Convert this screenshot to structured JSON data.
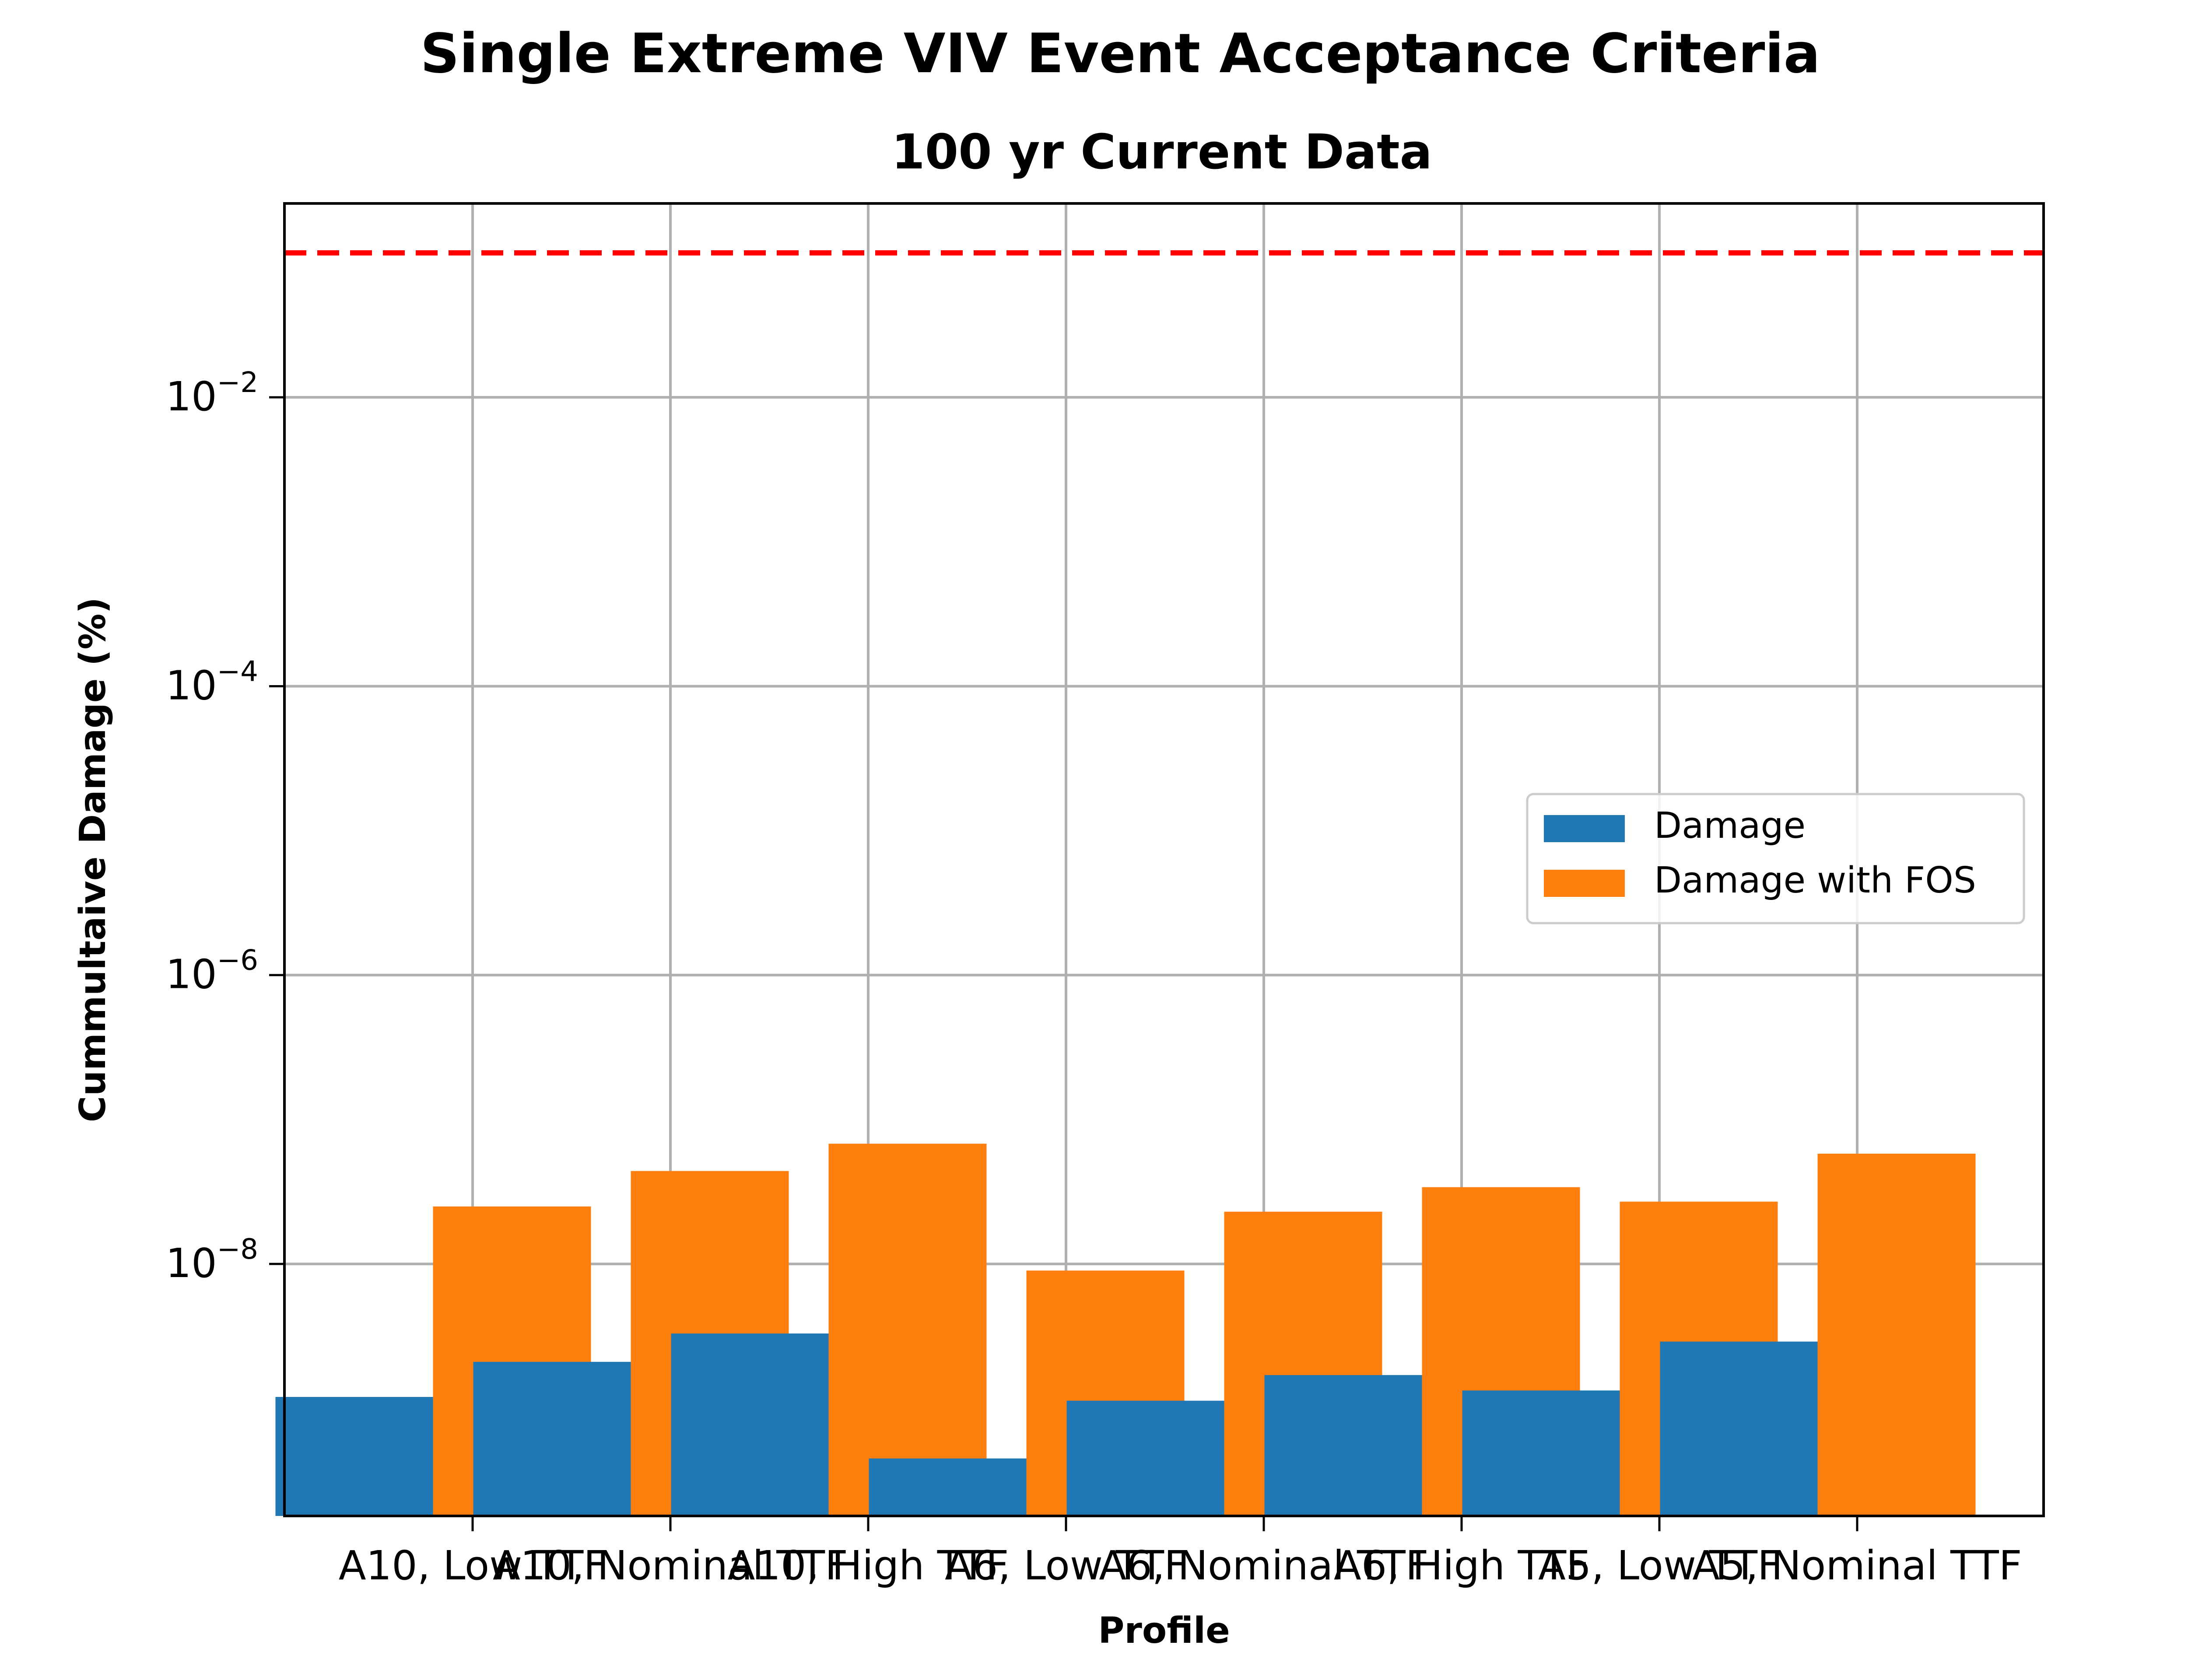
{
  "chart_data": {
    "type": "bar",
    "title": "Single Extreme VIV Event Acceptance Criteria",
    "subtitle": "100 yr Current Data",
    "xlabel": "Profile",
    "ylabel": "Cummultaive Damage (%)",
    "yscale": "log",
    "ylim": [
      1.8e-10,
      0.22
    ],
    "y_ticks": [
      {
        "value": 0.01,
        "base": "10",
        "exp": "−2"
      },
      {
        "value": 0.0001,
        "base": "10",
        "exp": "−4"
      },
      {
        "value": 1e-06,
        "base": "10",
        "exp": "−6"
      },
      {
        "value": 1e-08,
        "base": "10",
        "exp": "−8"
      }
    ],
    "categories": [
      "A10, Low TTF",
      "A10, Nominal TTF",
      "A10, High TTF",
      "A6, Low TTF",
      "A6, Nominal TTF",
      "A6, High TTF",
      "A5, Low TTF",
      "A5, Nominal TTF"
    ],
    "series": [
      {
        "name": "Damage",
        "color": "#1f77b4",
        "values": [
          1.2e-09,
          2.1e-09,
          3.3e-09,
          4.5e-10,
          1.13e-09,
          1.7e-09,
          1.33e-09,
          2.9e-09
        ]
      },
      {
        "name": "Damage with FOS",
        "color": "#ff7f0e",
        "values": [
          2.5e-08,
          4.4e-08,
          6.8e-08,
          9e-09,
          2.3e-08,
          3.4e-08,
          2.7e-08,
          5.8e-08
        ]
      }
    ],
    "reference_line": {
      "value": 0.1,
      "color": "#ff0000",
      "style": "dashed"
    },
    "grid": true,
    "legend_position": "center-right"
  }
}
